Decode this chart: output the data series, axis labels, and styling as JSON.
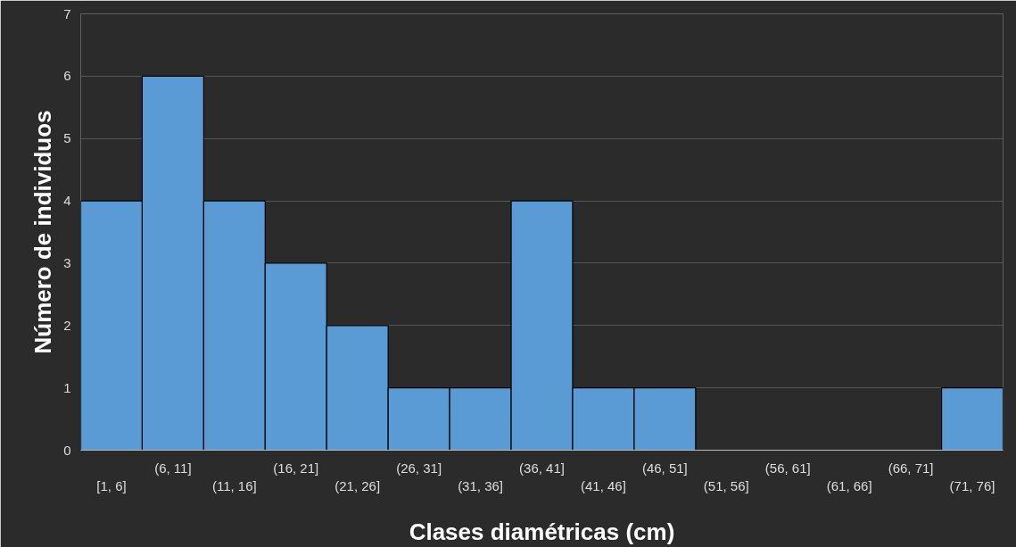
{
  "chart_data": {
    "type": "bar",
    "xlabel": "Clases diamétricas (cm)",
    "ylabel": "Número de individuos",
    "categories": [
      "[1, 6]",
      "(6, 11]",
      "(11, 16]",
      "(16, 21]",
      "(21, 26]",
      "(26, 31]",
      "(31, 36]",
      "(36, 41]",
      "(41, 46]",
      "(46, 51]",
      "(51, 56]",
      "(56, 61]",
      "(61, 66]",
      "(66, 71]",
      "(71, 76]"
    ],
    "values": [
      4,
      6,
      4,
      3,
      2,
      1,
      1,
      4,
      1,
      1,
      0,
      0,
      0,
      0,
      1
    ],
    "color": "#5b9bd5",
    "ylim": [
      0,
      7
    ],
    "yticks": [
      0,
      1,
      2,
      3,
      4,
      5,
      6,
      7
    ],
    "grid": "y"
  }
}
